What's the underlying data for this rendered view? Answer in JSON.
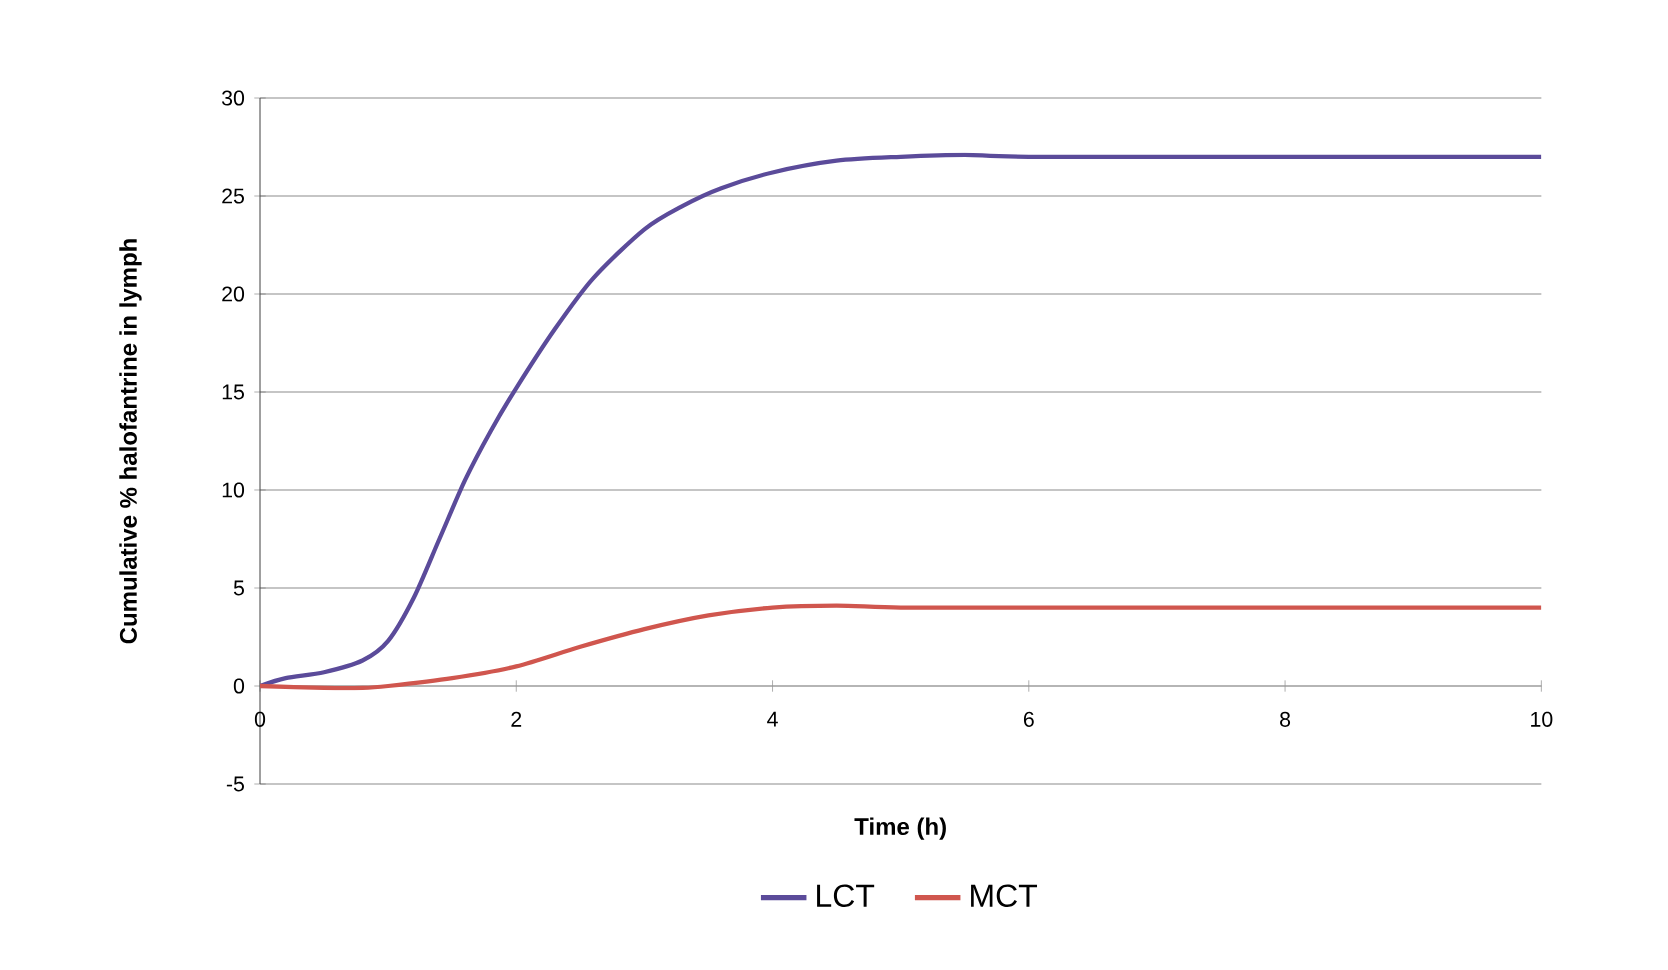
{
  "chart_data": {
    "type": "line",
    "xlabel": "Time (h)",
    "ylabel": "Cumulative % halofantrine in lymph",
    "xlim": [
      0,
      10
    ],
    "ylim": [
      -5,
      30
    ],
    "xticks": [
      0,
      2,
      4,
      6,
      8,
      10
    ],
    "yticks": [
      -5,
      0,
      5,
      10,
      15,
      20,
      25,
      30
    ],
    "grid": "y",
    "legend": "bottom",
    "marker": "none",
    "line_style": "solid",
    "series": [
      {
        "name": "LCT",
        "color": "#5b4b9a",
        "x": [
          0,
          0.2,
          0.5,
          0.8,
          1,
          1.2,
          1.4,
          1.6,
          1.8,
          2,
          2.3,
          2.6,
          3,
          3.3,
          3.6,
          4,
          4.5,
          5,
          5.5,
          6,
          8,
          10
        ],
        "values": [
          0,
          0.4,
          0.7,
          1.3,
          2.3,
          4.5,
          7.5,
          10.5,
          13,
          15.2,
          18.2,
          20.8,
          23.3,
          24.5,
          25.4,
          26.2,
          26.8,
          27,
          27.1,
          27,
          27,
          27
        ]
      },
      {
        "name": "MCT",
        "color": "#d0564e",
        "x": [
          0,
          0.5,
          0.8,
          1,
          1.5,
          2,
          2.5,
          3,
          3.5,
          4,
          4.5,
          5,
          6,
          8,
          10
        ],
        "values": [
          0,
          -0.1,
          -0.1,
          0,
          0.4,
          1,
          2,
          2.9,
          3.6,
          4,
          4.1,
          4,
          4,
          4,
          4
        ]
      }
    ]
  }
}
